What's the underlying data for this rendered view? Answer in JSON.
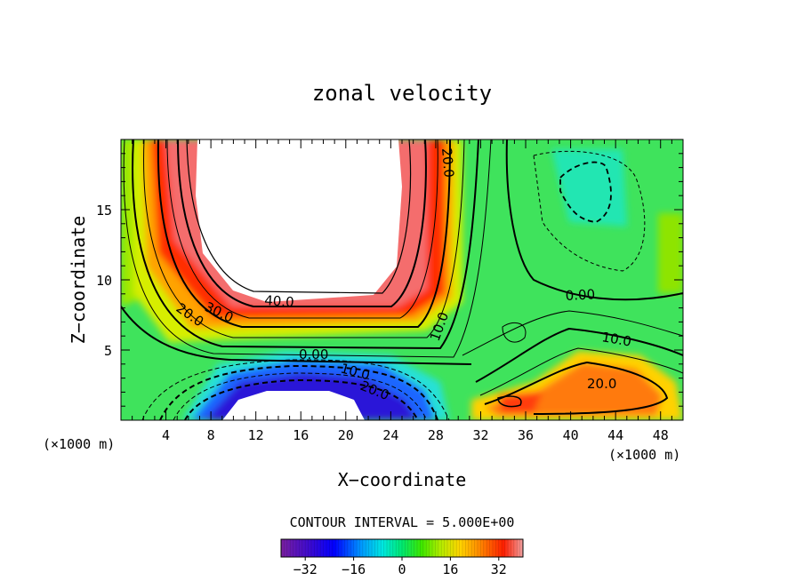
{
  "chart_data": {
    "type": "heatmap",
    "title": "zonal velocity",
    "xlabel": "X−coordinate",
    "ylabel": "Z−coordinate",
    "x_unit_left": "(×1000 m)",
    "x_unit_right": "(×1000 m)",
    "xlim": [
      0,
      50
    ],
    "ylim": [
      0,
      20
    ],
    "x_ticks": [
      4,
      8,
      12,
      16,
      20,
      24,
      28,
      32,
      36,
      40,
      44,
      48
    ],
    "y_ticks": [
      5,
      10,
      15
    ],
    "contour_interval_label": "CONTOUR INTERVAL = 5.000E+00",
    "contour_interval": 5,
    "contour_labels": [
      {
        "text": "40.0",
        "x": 13,
        "z": 8.4
      },
      {
        "text": "30.0",
        "x": 9,
        "z": 7.8
      },
      {
        "text": "20.0",
        "x": 6.3,
        "z": 7.3
      },
      {
        "text": "20.0",
        "x": 29,
        "z": 18.2
      },
      {
        "text": "10.0",
        "x": 29.8,
        "z": 6.8
      },
      {
        "text": "0.00",
        "x": 17,
        "z": 4.7
      },
      {
        "text": "10.0",
        "x": 21,
        "z": 3.7
      },
      {
        "text": "20.0",
        "x": 23,
        "z": 2.3
      },
      {
        "text": "0.00",
        "x": 41.6,
        "z": 8.8
      },
      {
        "text": "10.0",
        "x": 42.5,
        "z": 5.8
      },
      {
        "text": "20.0",
        "x": 43,
        "z": 2.7
      }
    ],
    "features": [
      {
        "kind": "jet-core-max",
        "x_range": [
          5,
          25
        ],
        "z_range": [
          8,
          20
        ],
        "value": "> 45 (white)"
      },
      {
        "kind": "jet-core-min",
        "x_range": [
          8,
          22
        ],
        "z_range": [
          0,
          2
        ],
        "value": "< -40 (white)"
      },
      {
        "kind": "local-max",
        "x_range": [
          32,
          48
        ],
        "z_range": [
          0.5,
          4.5
        ],
        "value": "about 20-25"
      },
      {
        "kind": "local-min",
        "x_range": [
          38,
          44
        ],
        "z_range": [
          14,
          18.5
        ],
        "value": "about -5"
      }
    ],
    "colorbar": {
      "range": [
        -40,
        40
      ],
      "ticks": [
        -32,
        -16,
        0,
        16,
        32
      ],
      "colors": [
        "#7a1e9e",
        "#3b0ad0",
        "#0000ff",
        "#0096ff",
        "#00e8e0",
        "#00e870",
        "#3ce800",
        "#b4ec00",
        "#ffd400",
        "#ff8000",
        "#ff1e00",
        "#f0a0a0"
      ]
    }
  }
}
